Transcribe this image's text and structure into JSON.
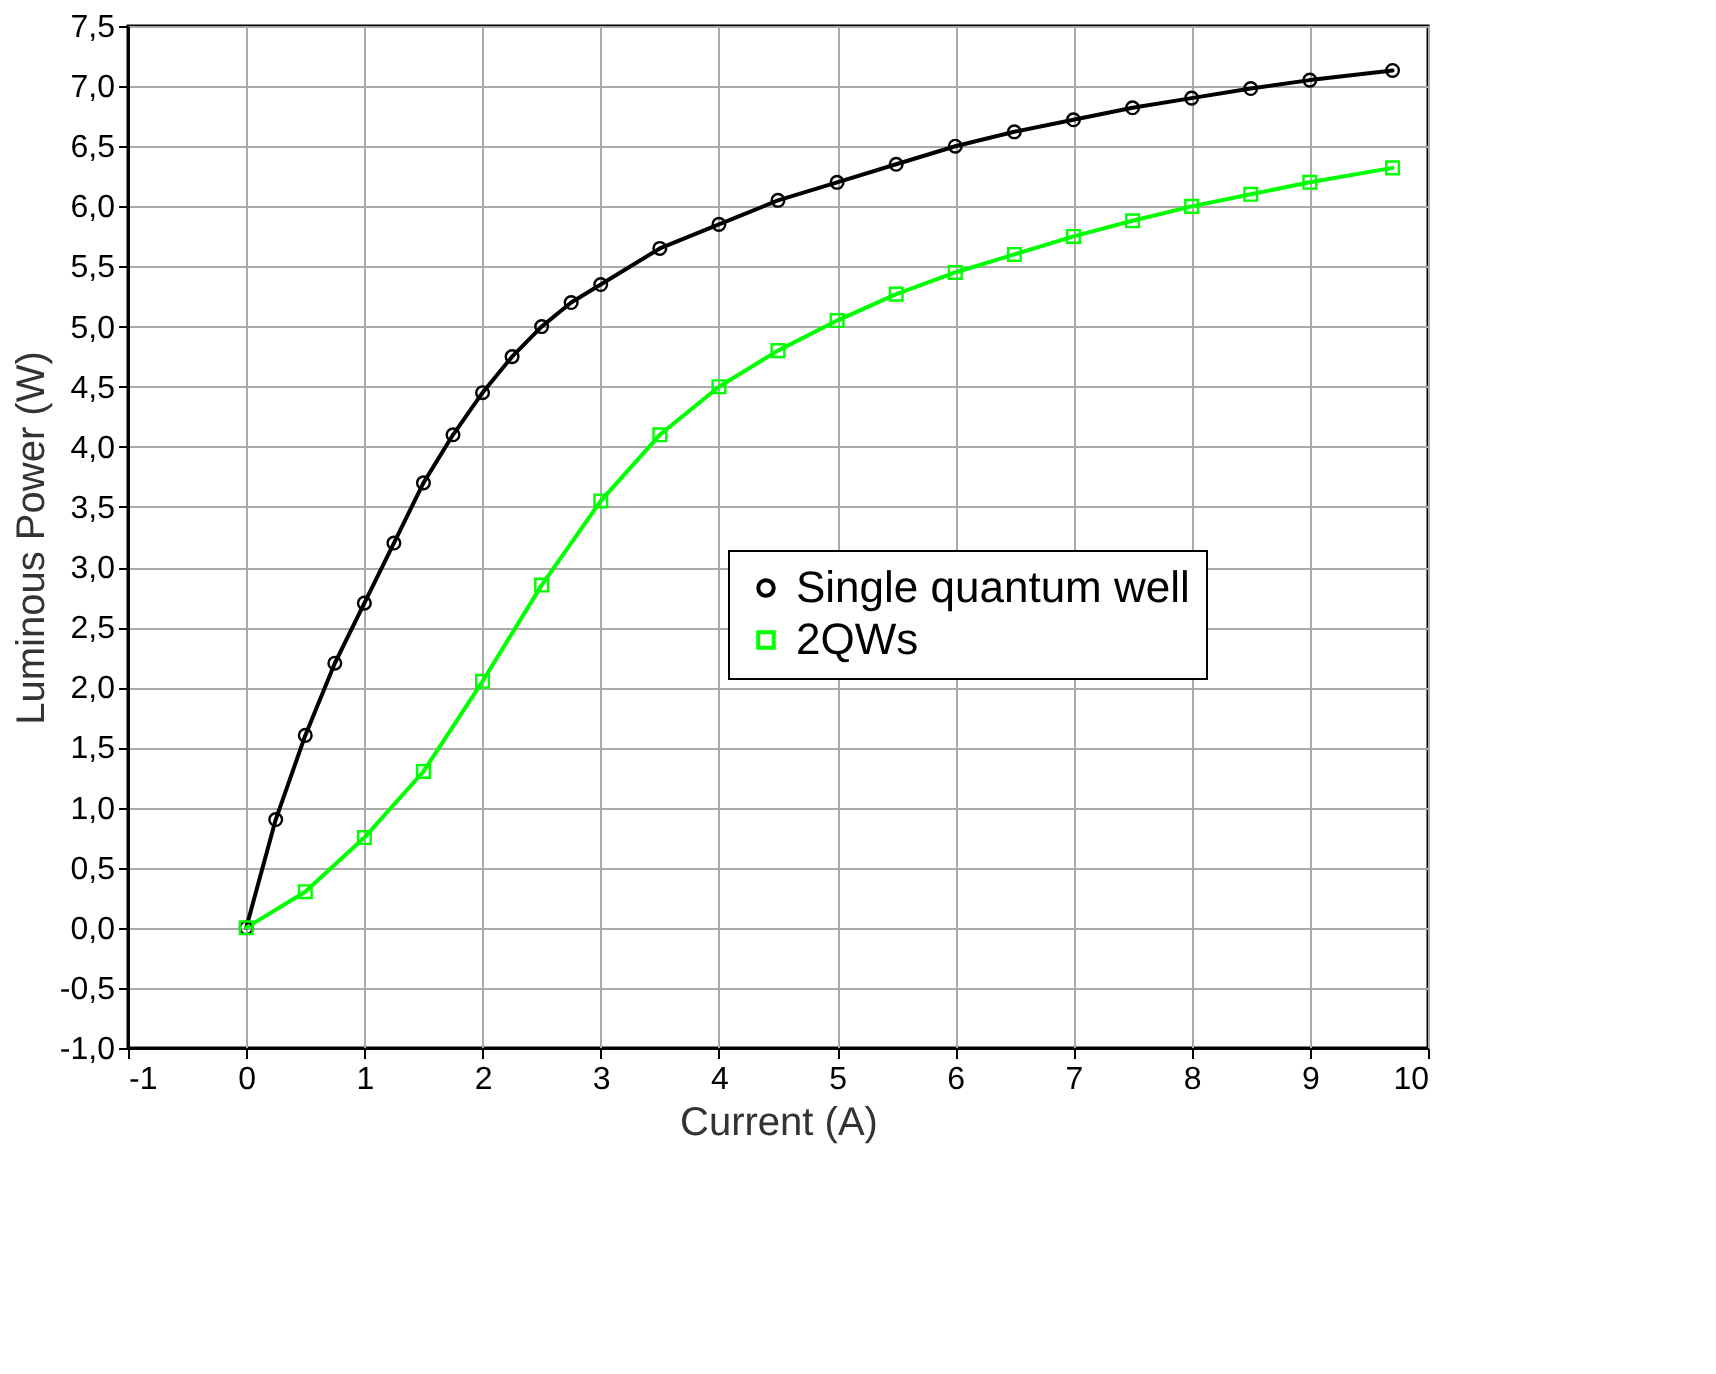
{
  "chart_data": {
    "type": "line",
    "xlabel": "Current (A)",
    "ylabel": "Luminous Power (W)",
    "xlim": [
      -1,
      10
    ],
    "xticks": [
      -1,
      0,
      1,
      2,
      3,
      4,
      5,
      6,
      7,
      8,
      9,
      10
    ],
    "ylim": [
      -1,
      7.5
    ],
    "yticks": [
      {
        "value": -1,
        "label": "-1,0"
      },
      {
        "value": -0.5,
        "label": "-0,5"
      },
      {
        "value": 0,
        "label": "0,0"
      },
      {
        "value": 0.5,
        "label": "0,5"
      },
      {
        "value": 1,
        "label": "1,0"
      },
      {
        "value": 1.5,
        "label": "1,5"
      },
      {
        "value": 2,
        "label": "2,0"
      },
      {
        "value": 2.5,
        "label": "2,5"
      },
      {
        "value": 3,
        "label": "3,0"
      },
      {
        "value": 3.5,
        "label": "3,5"
      },
      {
        "value": 4,
        "label": "4,0"
      },
      {
        "value": 4.5,
        "label": "4,5"
      },
      {
        "value": 5,
        "label": "5,0"
      },
      {
        "value": 5.5,
        "label": "5,5"
      },
      {
        "value": 6,
        "label": "6,0"
      },
      {
        "value": 6.5,
        "label": "6,5"
      },
      {
        "value": 7,
        "label": "7,0"
      },
      {
        "value": 7.5,
        "label": "7,5"
      }
    ],
    "grid": true,
    "legend": "right",
    "line_style": "solid",
    "series": [
      {
        "name": "Single quantum well",
        "color": "#000000",
        "marker": "circle",
        "x": [
          0,
          0.25,
          0.5,
          0.75,
          1,
          1.25,
          1.5,
          1.75,
          2,
          2.25,
          2.5,
          2.75,
          3,
          3.5,
          4,
          4.5,
          5,
          5.5,
          6,
          6.5,
          7,
          7.5,
          8,
          8.5,
          9,
          9.7
        ],
        "values": [
          0,
          0.9,
          1.6,
          2.2,
          2.7,
          3.2,
          3.7,
          4.1,
          4.45,
          4.75,
          5.0,
          5.2,
          5.35,
          5.65,
          5.85,
          6.05,
          6.2,
          6.35,
          6.5,
          6.62,
          6.72,
          6.82,
          6.9,
          6.98,
          7.05,
          7.13
        ]
      },
      {
        "name": "2QWs",
        "color": "#00ff00",
        "marker": "square",
        "x": [
          0,
          0.5,
          1,
          1.5,
          2,
          2.5,
          3,
          3.5,
          4,
          4.5,
          5,
          5.5,
          6,
          6.5,
          7,
          7.5,
          8,
          8.5,
          9,
          9.7
        ],
        "values": [
          0,
          0.3,
          0.75,
          1.3,
          2.05,
          2.85,
          3.55,
          4.1,
          4.5,
          4.8,
          5.05,
          5.27,
          5.45,
          5.6,
          5.75,
          5.88,
          6.0,
          6.1,
          6.2,
          6.32
        ]
      }
    ]
  }
}
